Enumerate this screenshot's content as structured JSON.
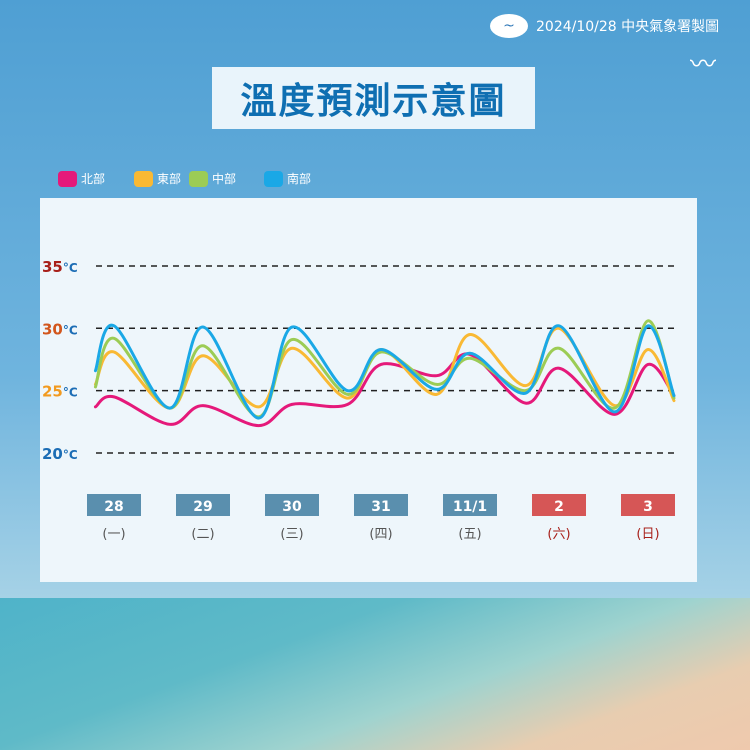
{
  "header": {
    "credit": "2024/10/28 中央氣象署製圖",
    "title": "溫度預測示意圖"
  },
  "chart_data": {
    "type": "line",
    "title": "溫度預測示意圖",
    "ylim": [
      20,
      35
    ],
    "yticks": [
      {
        "value": 35,
        "label": "35",
        "unit": "°C",
        "color": "#a8201a"
      },
      {
        "value": 30,
        "label": "30",
        "unit": "°C",
        "color": "#d2561c"
      },
      {
        "value": 25,
        "label": "25",
        "unit": "°C",
        "color": "#f29a1f"
      },
      {
        "value": 20,
        "label": "20",
        "unit": "°C",
        "color": "#1c6db5"
      }
    ],
    "grid": "dashed horizontal at 20/25/30/35",
    "legend_placement": "top-left",
    "days": [
      {
        "date": "28",
        "weekday": "(一)",
        "color": "#5a8fae",
        "text_color": "#555"
      },
      {
        "date": "29",
        "weekday": "(二)",
        "color": "#5a8fae",
        "text_color": "#555"
      },
      {
        "date": "30",
        "weekday": "(三)",
        "color": "#5a8fae",
        "text_color": "#555"
      },
      {
        "date": "31",
        "weekday": "(四)",
        "color": "#5a8fae",
        "text_color": "#555"
      },
      {
        "date": "11/1",
        "weekday": "(五)",
        "color": "#5a8fae",
        "text_color": "#555"
      },
      {
        "date": "2",
        "weekday": "(六)",
        "color": "#d65656",
        "text_color": "#a8201a"
      },
      {
        "date": "3",
        "weekday": "(日)",
        "color": "#d65656",
        "text_color": "#a8201a"
      }
    ],
    "x": [
      "10/28 09",
      "10/28 14",
      "10/29 05",
      "10/29 14",
      "10/30 05",
      "10/30 14",
      "10/31 05",
      "10/31 14",
      "11/01 05",
      "11/01 14",
      "11/02 05",
      "11/02 14",
      "11/03 05",
      "11/03 14",
      "11/03 21"
    ],
    "series": [
      {
        "name": "北部",
        "color": "#e5197a",
        "values": [
          23.7,
          24.5,
          22.3,
          23.8,
          22.2,
          23.9,
          23.9,
          27.1,
          26.2,
          27.9,
          24.0,
          26.8,
          23.1,
          27.1,
          24.6
        ]
      },
      {
        "name": "東部",
        "color": "#f9b934",
        "values": [
          25.5,
          28.1,
          23.6,
          27.8,
          23.7,
          28.4,
          24.4,
          28.3,
          24.7,
          29.5,
          25.4,
          30.0,
          23.8,
          28.3,
          24.2
        ]
      },
      {
        "name": "中部",
        "color": "#9ccc55",
        "values": [
          25.3,
          29.2,
          23.6,
          28.6,
          22.9,
          29.1,
          24.7,
          28.1,
          25.5,
          27.6,
          25.0,
          28.4,
          23.6,
          30.6,
          24.4
        ]
      },
      {
        "name": "南部",
        "color": "#1aa8e6",
        "values": [
          26.6,
          30.2,
          23.6,
          30.1,
          22.8,
          30.1,
          25.0,
          28.3,
          25.1,
          28.0,
          24.8,
          30.2,
          23.3,
          30.2,
          24.6
        ]
      }
    ]
  }
}
